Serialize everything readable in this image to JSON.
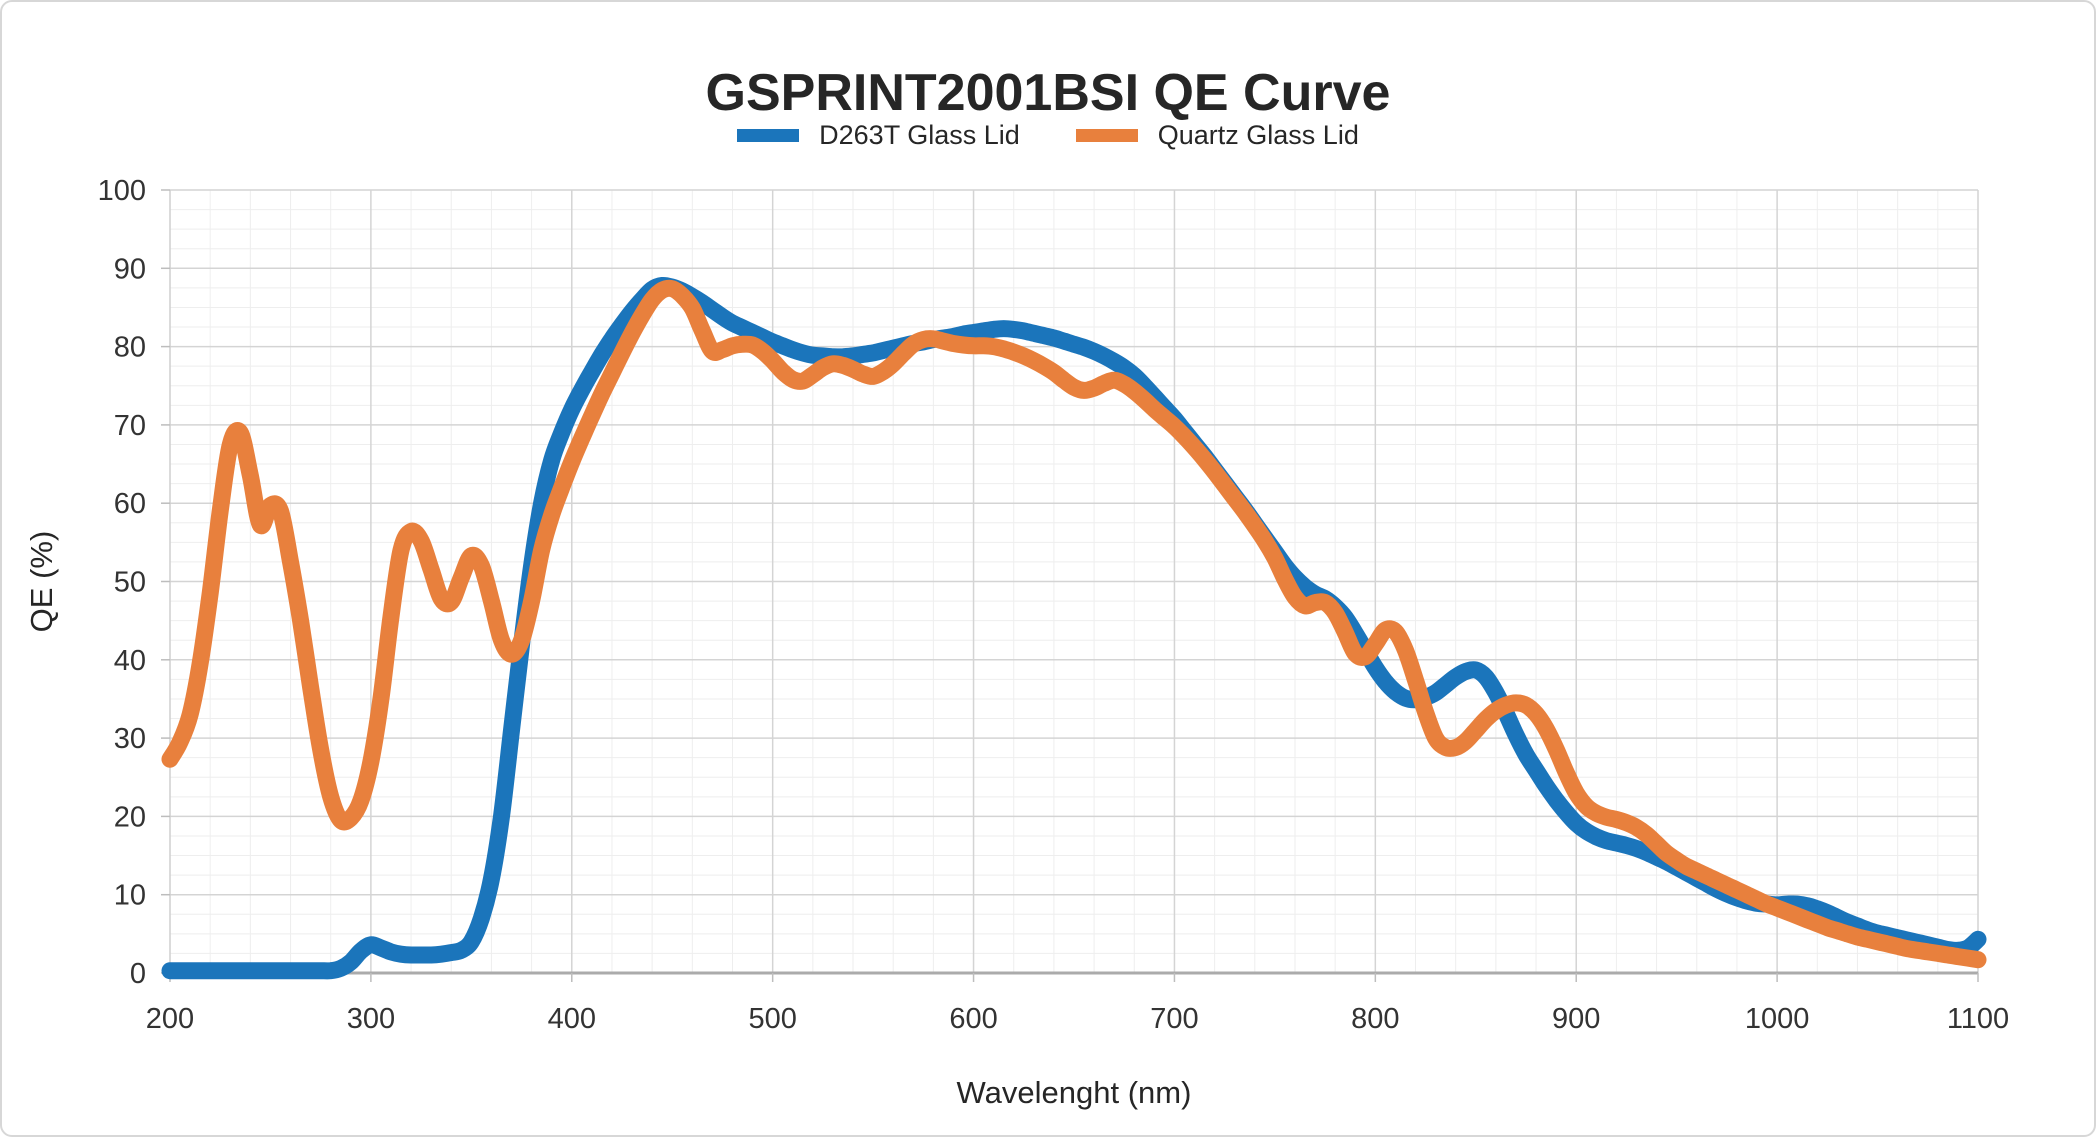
{
  "chart_data": {
    "type": "line",
    "title": "GSPRINT2001BSI QE Curve",
    "xlabel": "Wavelenght (nm)",
    "ylabel": "QE (%)",
    "xlim": [
      200,
      1100
    ],
    "ylim": [
      0,
      100
    ],
    "x_ticks": [
      200,
      300,
      400,
      500,
      600,
      700,
      800,
      900,
      1000,
      1100
    ],
    "y_ticks": [
      0,
      10,
      20,
      30,
      40,
      50,
      60,
      70,
      80,
      90,
      100
    ],
    "grid": {
      "major": true,
      "minor": true,
      "x_minor_step": 20,
      "y_minor_step": 2.5
    },
    "legend_position": "top-center",
    "x_start": 200,
    "x_step": 5,
    "series": [
      {
        "name": "D263T Glass Lid",
        "color": "#1b75bb",
        "values": [
          0.3,
          0.3,
          0.3,
          0.3,
          0.3,
          0.3,
          0.3,
          0.3,
          0.3,
          0.3,
          0.3,
          0.3,
          0.3,
          0.3,
          0.3,
          0.3,
          0.3,
          0.6,
          1.4,
          2.8,
          3.6,
          3.2,
          2.7,
          2.4,
          2.3,
          2.3,
          2.3,
          2.4,
          2.6,
          2.9,
          4,
          7,
          12,
          20,
          31,
          42,
          52,
          60,
          65.5,
          69,
          72,
          74.5,
          76.8,
          79,
          81,
          82.8,
          84.5,
          86,
          87.3,
          87.8,
          87.6,
          87.1,
          86.4,
          85.6,
          84.7,
          83.8,
          83,
          82.4,
          81.8,
          81.2,
          80.6,
          80.1,
          79.6,
          79.2,
          78.9,
          78.8,
          78.7,
          78.7,
          78.8,
          79,
          79.2,
          79.5,
          79.8,
          80.1,
          80.4,
          80.6,
          80.9,
          81.1,
          81.3,
          81.6,
          81.8,
          82,
          82.2,
          82.3,
          82.2,
          82,
          81.7,
          81.4,
          81.1,
          80.7,
          80.3,
          79.9,
          79.4,
          78.8,
          78.1,
          77.3,
          76.3,
          75,
          73.6,
          72.2,
          70.8,
          69.2,
          67.6,
          66,
          64.3,
          62.6,
          60.9,
          59.2,
          57.4,
          55.6,
          53.8,
          52,
          50.5,
          49.3,
          48.4,
          47.8,
          46.8,
          45.4,
          43.4,
          41.2,
          39,
          37.2,
          35.9,
          35.1,
          34.9,
          35.2,
          35.8,
          36.8,
          37.8,
          38.5,
          38.7,
          37.8,
          35.8,
          33.2,
          30.4,
          27.9,
          25.9,
          23.9,
          22.1,
          20.5,
          19.1,
          18.1,
          17.4,
          16.9,
          16.6,
          16.3,
          15.9,
          15.4,
          14.8,
          14.2,
          13.5,
          12.8,
          12.1,
          11.4,
          10.7,
          10.1,
          9.6,
          9.2,
          8.9,
          8.8,
          8.7,
          8.8,
          8.8,
          8.6,
          8.2,
          7.7,
          7.1,
          6.5,
          6,
          5.5,
          5.1,
          4.8,
          4.5,
          4.2,
          3.9,
          3.6,
          3.3,
          3,
          2.9,
          3.2,
          4.3
        ]
      },
      {
        "name": "Quartz Glass Lid",
        "color": "#e8803d",
        "values": [
          27.3,
          29.5,
          33,
          39.5,
          48.5,
          59,
          67.5,
          69,
          63.5,
          57.2,
          59.7,
          59,
          52.5,
          45,
          36.5,
          28.5,
          22.5,
          19.5,
          19.8,
          22,
          27,
          35,
          45.5,
          54,
          56.4,
          55.2,
          51.5,
          47.8,
          47.4,
          50.5,
          53.3,
          52,
          47.5,
          42.5,
          40.7,
          42.5,
          47.5,
          54,
          58.5,
          62,
          65.3,
          68.3,
          71.2,
          74,
          76.6,
          79.2,
          81.7,
          84,
          86,
          87.2,
          87.4,
          86.5,
          84.9,
          82,
          79.4,
          79.6,
          80.1,
          80.3,
          80.2,
          79.4,
          78.2,
          76.8,
          75.8,
          75.6,
          76.4,
          77.3,
          77.8,
          77.6,
          77.1,
          76.5,
          76.2,
          76.8,
          77.8,
          79.1,
          80.3,
          80.9,
          81,
          80.7,
          80.4,
          80.2,
          80.1,
          80.1,
          80,
          79.7,
          79.3,
          78.8,
          78.2,
          77.5,
          76.7,
          75.7,
          74.8,
          74.4,
          74.7,
          75.3,
          75.7,
          75.2,
          74.3,
          73.2,
          72,
          70.9,
          69.8,
          68.5,
          67.1,
          65.6,
          64,
          62.3,
          60.6,
          58.9,
          57.1,
          55.2,
          53,
          50.3,
          48,
          46.9,
          47.3,
          47.3,
          46,
          43.5,
          40.8,
          40.4,
          42,
          43.8,
          43.6,
          41.2,
          37.4,
          33.3,
          30,
          28.8,
          28.8,
          29.6,
          31,
          32.4,
          33.5,
          34.2,
          34.5,
          34.2,
          33.1,
          31.2,
          28.6,
          25.6,
          23,
          21.3,
          20.4,
          19.9,
          19.6,
          19.2,
          18.6,
          17.7,
          16.5,
          15.3,
          14.4,
          13.6,
          13,
          12.4,
          11.8,
          11.2,
          10.6,
          10,
          9.4,
          8.8,
          8.3,
          7.8,
          7.3,
          6.8,
          6.3,
          5.8,
          5.4,
          5,
          4.6,
          4.3,
          4,
          3.7,
          3.4,
          3.1,
          2.9,
          2.7,
          2.5,
          2.3,
          2.1,
          1.9,
          1.7
        ]
      }
    ]
  }
}
